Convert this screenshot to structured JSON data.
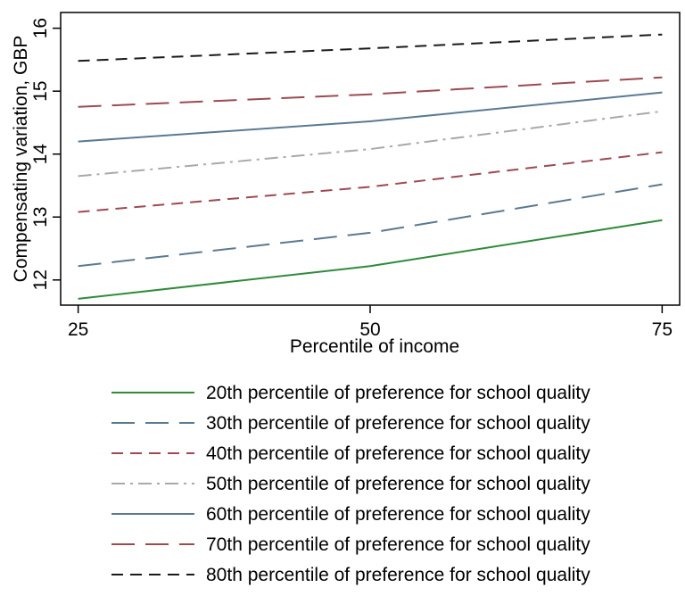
{
  "chart_data": {
    "type": "line",
    "title": "",
    "xlabel": "Percentile of income",
    "ylabel": "Compensating variation, GBP",
    "x": [
      25,
      50,
      75
    ],
    "x_ticks": [
      "25",
      "50",
      "75"
    ],
    "y_ticks": [
      "12",
      "13",
      "14",
      "15",
      "16"
    ],
    "xlim": [
      23.5,
      76.5
    ],
    "ylim": [
      11.6,
      16.25
    ],
    "grid": false,
    "legend_position": "bottom",
    "series": [
      {
        "name": "20th percentile of preference for school quality",
        "values": [
          11.7,
          12.22,
          12.95
        ],
        "color": "#2e8b3a",
        "dash": "solid"
      },
      {
        "name": "30th percentile of preference for school quality",
        "values": [
          12.22,
          12.75,
          13.52
        ],
        "color": "#5a7a93",
        "dash": "longdash"
      },
      {
        "name": "40th percentile of preference for school quality",
        "values": [
          13.08,
          13.48,
          14.03
        ],
        "color": "#9c4a52",
        "dash": "dash"
      },
      {
        "name": "50th percentile of preference for school quality",
        "values": [
          13.65,
          14.08,
          14.68
        ],
        "color": "#a9a9a9",
        "dash": "dashdot"
      },
      {
        "name": "60th percentile of preference for school quality",
        "values": [
          14.2,
          14.52,
          14.98
        ],
        "color": "#5a7a93",
        "dash": "solid"
      },
      {
        "name": "70th percentile of preference for school quality",
        "values": [
          14.75,
          14.95,
          15.22
        ],
        "color": "#9c4a52",
        "dash": "longdash"
      },
      {
        "name": "80th percentile of preference for school quality",
        "values": [
          15.48,
          15.68,
          15.9
        ],
        "color": "#1a1a1a",
        "dash": "dash"
      }
    ]
  }
}
